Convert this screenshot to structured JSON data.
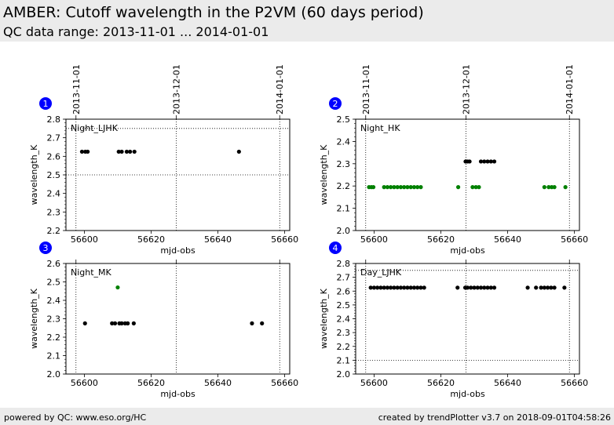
{
  "header": {
    "title": "AMBER: Cutoff wavelength in the P2VM (60 days period)",
    "subtitle": "QC data range: 2013-11-01 ... 2014-01-01"
  },
  "footer": {
    "left": "powered by QC: www.eso.org/HC",
    "right": "created by trendPlotter v3.7 on 2018-09-01T04:58:26"
  },
  "colors": {
    "series_default": "#000000",
    "series_highlight": "#008000",
    "badge": "#0000ff",
    "header_bg": "#ebebeb"
  },
  "chart_data": [
    {
      "type": "scatter",
      "panel_number": "1",
      "label": "Night_LJHK",
      "xlabel": "mjd-obs",
      "ylabel": "wavelength_K",
      "xlim": [
        56594.5,
        56661.5
      ],
      "ylim": [
        2.2,
        2.8
      ],
      "xticks": [
        56600,
        56620,
        56640,
        56660
      ],
      "yticks": [
        2.2,
        2.3,
        2.4,
        2.5,
        2.6,
        2.7,
        2.8
      ],
      "yminor": 0.02,
      "top_date_ticks": [
        {
          "x": 56597.5,
          "label": "2013-11-01"
        },
        {
          "x": 56627.5,
          "label": "2013-12-01"
        },
        {
          "x": 56658.5,
          "label": "2014-01-01"
        }
      ],
      "hlines": [
        2.75,
        2.5
      ],
      "series": [
        {
          "color": "#000000",
          "x": [
            56599.3,
            56600.3,
            56601.0,
            56610.3,
            56611.2,
            56612.7,
            56613.7,
            56615.0,
            56646.3
          ],
          "y": [
            2.625,
            2.625,
            2.625,
            2.625,
            2.625,
            2.625,
            2.625,
            2.625,
            2.625
          ]
        }
      ]
    },
    {
      "type": "scatter",
      "panel_number": "2",
      "label": "Night_HK",
      "xlabel": "mjd-obs",
      "ylabel": "wavelength_K",
      "xlim": [
        56594.5,
        56661.5
      ],
      "ylim": [
        2.0,
        2.5
      ],
      "xticks": [
        56600,
        56620,
        56640,
        56660
      ],
      "yticks": [
        2.0,
        2.1,
        2.2,
        2.3,
        2.4,
        2.5
      ],
      "yminor": 0.02,
      "top_date_ticks": [
        {
          "x": 56597.5,
          "label": "2013-11-01"
        },
        {
          "x": 56627.5,
          "label": "2013-12-01"
        },
        {
          "x": 56658.5,
          "label": "2014-01-01"
        }
      ],
      "hlines": [],
      "series": [
        {
          "color": "#008000",
          "x": [
            56598.5,
            56599.2,
            56599.8,
            56603.0,
            56604.0,
            56605.0,
            56606.0,
            56607.0,
            56608.0,
            56609.0,
            56610.0,
            56611.0,
            56612.0,
            56613.0,
            56614.0,
            56625.2,
            56629.5,
            56630.5,
            56631.4,
            56651.0,
            56652.3,
            56653.2,
            56654.0,
            56657.3
          ],
          "y": [
            2.195,
            2.195,
            2.195,
            2.195,
            2.195,
            2.195,
            2.195,
            2.195,
            2.195,
            2.195,
            2.195,
            2.195,
            2.195,
            2.195,
            2.195,
            2.195,
            2.195,
            2.195,
            2.195,
            2.195,
            2.195,
            2.195,
            2.195,
            2.195
          ]
        },
        {
          "color": "#000000",
          "x": [
            56627.4,
            56628.0,
            56628.6,
            56632.0,
            56633.0,
            56634.0,
            56635.0,
            56636.0
          ],
          "y": [
            2.31,
            2.31,
            2.31,
            2.31,
            2.31,
            2.31,
            2.31,
            2.31
          ]
        }
      ]
    },
    {
      "type": "scatter",
      "panel_number": "3",
      "label": "Night_MK",
      "xlabel": "mjd-obs",
      "ylabel": "wavelength_K",
      "xlim": [
        56594.5,
        56661.5
      ],
      "ylim": [
        2.0,
        2.6
      ],
      "xticks": [
        56600,
        56620,
        56640,
        56660
      ],
      "yticks": [
        2.0,
        2.1,
        2.2,
        2.3,
        2.4,
        2.5,
        2.6
      ],
      "yminor": 0.02,
      "top_date_ticks": [
        {
          "x": 56597.5,
          "label": ""
        },
        {
          "x": 56627.5,
          "label": ""
        },
        {
          "x": 56658.5,
          "label": ""
        }
      ],
      "hlines": [],
      "series": [
        {
          "color": "#000000",
          "x": [
            56600.2,
            56608.3,
            56609.2,
            56610.5,
            56611.2,
            56612.2,
            56613.0,
            56614.8,
            56650.2,
            56653.2
          ],
          "y": [
            2.275,
            2.275,
            2.275,
            2.275,
            2.275,
            2.275,
            2.275,
            2.275,
            2.275,
            2.275
          ]
        },
        {
          "color": "#008000",
          "x": [
            56610.0
          ],
          "y": [
            2.47
          ]
        }
      ]
    },
    {
      "type": "scatter",
      "panel_number": "4",
      "label": "Day_LJHK",
      "xlabel": "mjd-obs",
      "ylabel": "wavelength_K",
      "xlim": [
        56594.5,
        56661.5
      ],
      "ylim": [
        2.0,
        2.8
      ],
      "xticks": [
        56600,
        56620,
        56640,
        56660
      ],
      "yticks": [
        2.0,
        2.1,
        2.2,
        2.3,
        2.4,
        2.5,
        2.6,
        2.7,
        2.8
      ],
      "yminor": 0.02,
      "top_date_ticks": [
        {
          "x": 56597.5,
          "label": ""
        },
        {
          "x": 56627.5,
          "label": ""
        },
        {
          "x": 56658.5,
          "label": ""
        }
      ],
      "hlines": [
        2.75,
        2.1
      ],
      "series": [
        {
          "color": "#000000",
          "x": [
            56599.0,
            56600.0,
            56601.0,
            56602.0,
            56603.0,
            56604.0,
            56605.0,
            56606.0,
            56607.0,
            56608.0,
            56609.0,
            56610.0,
            56611.0,
            56612.0,
            56613.0,
            56614.0,
            56615.0,
            56625.0,
            56627.3,
            56628.0,
            56629.0,
            56630.0,
            56631.0,
            56632.0,
            56633.0,
            56634.0,
            56635.0,
            56636.0,
            56646.0,
            56648.5,
            56650.0,
            56651.0,
            56652.0,
            56653.0,
            56654.0,
            56657.0
          ],
          "y": [
            2.625,
            2.625,
            2.625,
            2.625,
            2.625,
            2.625,
            2.625,
            2.625,
            2.625,
            2.625,
            2.625,
            2.625,
            2.625,
            2.625,
            2.625,
            2.625,
            2.625,
            2.625,
            2.625,
            2.625,
            2.625,
            2.625,
            2.625,
            2.625,
            2.625,
            2.625,
            2.625,
            2.625,
            2.625,
            2.625,
            2.625,
            2.625,
            2.625,
            2.625,
            2.625,
            2.625
          ]
        }
      ]
    }
  ]
}
